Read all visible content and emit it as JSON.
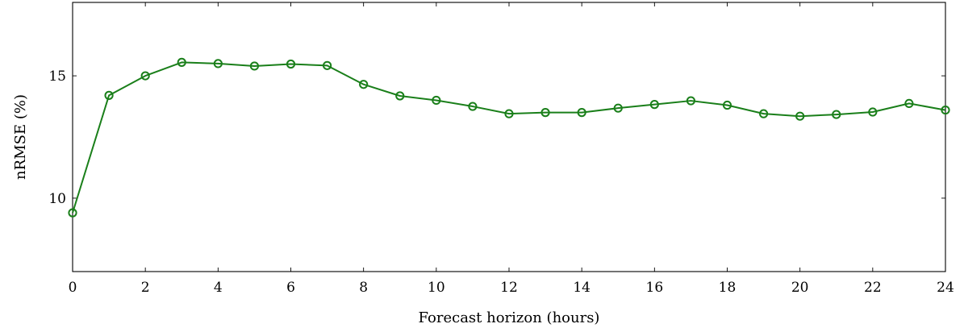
{
  "chart_data": {
    "type": "line",
    "xlabel": "Forecast horizon (hours)",
    "ylabel": "nRMSE (%)",
    "xlim": [
      0,
      24
    ],
    "ylim": [
      7,
      18
    ],
    "x_ticks": [
      "0",
      "2",
      "4",
      "6",
      "8",
      "10",
      "12",
      "14",
      "16",
      "18",
      "20",
      "22",
      "24"
    ],
    "y_ticks": [
      "10",
      "15"
    ],
    "grid": false,
    "series": [
      {
        "color": "#1a7f1a",
        "marker": "circle-open",
        "x": [
          0,
          1,
          2,
          3,
          4,
          5,
          6,
          7,
          8,
          9,
          10,
          11,
          12,
          13,
          14,
          15,
          16,
          17,
          18,
          19,
          20,
          21,
          22,
          23,
          24
        ],
        "values": [
          9.4,
          14.2,
          15.0,
          15.55,
          15.5,
          15.4,
          15.48,
          15.42,
          14.65,
          14.18,
          14.0,
          13.75,
          13.45,
          13.5,
          13.5,
          13.68,
          13.83,
          13.98,
          13.8,
          13.45,
          13.35,
          13.42,
          13.52,
          13.87,
          13.6
        ]
      }
    ]
  }
}
